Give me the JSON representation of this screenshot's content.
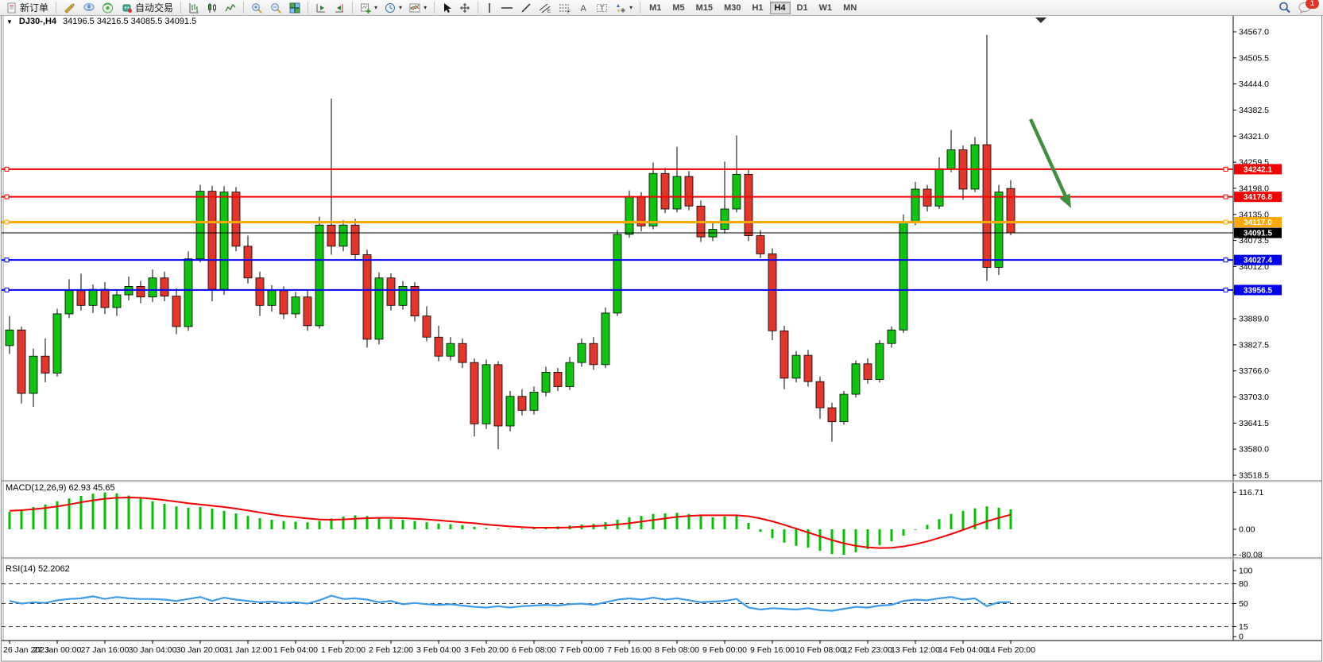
{
  "toolbar": {
    "new_order": "新订单",
    "autotrading": "自动交易",
    "timeframe_buttons": [
      "M1",
      "M5",
      "M15",
      "M30",
      "H1",
      "H4",
      "D1",
      "W1",
      "MN"
    ],
    "active_timeframe": "H4",
    "notification_badge": "1"
  },
  "chart": {
    "symbol_period": "DJ30-,H4",
    "ohlc_text": "34196.5 34216.5 34085.5 34091.5",
    "macd_label": "MACD(12,26,9) 62.93 45.65",
    "rsi_label": "RSI(14) 52.2062"
  },
  "chart_data": {
    "type": "candlestick",
    "symbol": "DJ30-",
    "period": "H4",
    "current_ohlc": {
      "open": 34196.5,
      "high": 34216.5,
      "low": 34085.5,
      "close": 34091.5
    },
    "bull_color": "#0FC40F",
    "bear_color": "#E2362A",
    "price_axis": {
      "max": 34567.0,
      "min": 33518.5,
      "tick_labels": [
        "34567.0",
        "34505.5",
        "34444.0",
        "34382.5",
        "34321.0",
        "34259.5",
        "34198.0",
        "34135.0",
        "34073.5",
        "34012.0",
        "33950.5",
        "33889.0",
        "33827.5",
        "33766.0",
        "33703.0",
        "33641.5",
        "33580.0",
        "33518.5"
      ]
    },
    "time_labels": [
      "26 Jan 2023",
      "27 Jan 00:00",
      "27 Jan 16:00",
      "30 Jan 04:00",
      "30 Jan 20:00",
      "31 Jan 12:00",
      "1 Feb 04:00",
      "1 Feb 20:00",
      "2 Feb 12:00",
      "3 Feb 04:00",
      "3 Feb 20:00",
      "6 Feb 08:00",
      "7 Feb 00:00",
      "7 Feb 16:00",
      "8 Feb 08:00",
      "9 Feb 00:00",
      "9 Feb 16:00",
      "10 Feb 08:00",
      "12 Feb 23:00",
      "13 Feb 12:00",
      "14 Feb 04:00",
      "14 Feb 20:00"
    ],
    "candles": [
      [
        33825,
        33895,
        33805,
        33862
      ],
      [
        33862,
        33870,
        33688,
        33712
      ],
      [
        33712,
        33818,
        33680,
        33800
      ],
      [
        33800,
        33842,
        33738,
        33760
      ],
      [
        33760,
        33912,
        33752,
        33900
      ],
      [
        33900,
        33982,
        33890,
        33955
      ],
      [
        33955,
        33995,
        33908,
        33920
      ],
      [
        33920,
        33970,
        33902,
        33958
      ],
      [
        33958,
        33975,
        33900,
        33915
      ],
      [
        33915,
        33958,
        33895,
        33945
      ],
      [
        33945,
        33988,
        33932,
        33965
      ],
      [
        33965,
        33978,
        33925,
        33940
      ],
      [
        33940,
        34005,
        33928,
        33985
      ],
      [
        33985,
        34000,
        33930,
        33942
      ],
      [
        33942,
        33960,
        33852,
        33870
      ],
      [
        33870,
        34048,
        33860,
        34030
      ],
      [
        34030,
        34205,
        34022,
        34190
      ],
      [
        34190,
        34203,
        33930,
        33958
      ],
      [
        33958,
        34202,
        33945,
        34188
      ],
      [
        34188,
        34200,
        34048,
        34060
      ],
      [
        34060,
        34085,
        33972,
        33985
      ],
      [
        33985,
        34000,
        33895,
        33920
      ],
      [
        33920,
        33968,
        33905,
        33955
      ],
      [
        33955,
        33965,
        33888,
        33900
      ],
      [
        33900,
        33952,
        33890,
        33940
      ],
      [
        33940,
        33955,
        33860,
        33872
      ],
      [
        33872,
        34130,
        33865,
        34110
      ],
      [
        34110,
        34409,
        34040,
        34060
      ],
      [
        34060,
        34122,
        34048,
        34110
      ],
      [
        34110,
        34125,
        34028,
        34040
      ],
      [
        34040,
        34052,
        33820,
        33840
      ],
      [
        33840,
        33998,
        33828,
        33985
      ],
      [
        33985,
        33996,
        33908,
        33920
      ],
      [
        33920,
        33978,
        33910,
        33965
      ],
      [
        33965,
        33975,
        33882,
        33895
      ],
      [
        33895,
        33918,
        33835,
        33845
      ],
      [
        33845,
        33872,
        33788,
        33800
      ],
      [
        33800,
        33845,
        33790,
        33830
      ],
      [
        33830,
        33842,
        33772,
        33785
      ],
      [
        33785,
        33795,
        33610,
        33640
      ],
      [
        33640,
        33792,
        33628,
        33780
      ],
      [
        33780,
        33788,
        33580,
        33635
      ],
      [
        33635,
        33718,
        33622,
        33705
      ],
      [
        33705,
        33722,
        33660,
        33672
      ],
      [
        33672,
        33728,
        33662,
        33715
      ],
      [
        33715,
        33775,
        33705,
        33762
      ],
      [
        33762,
        33772,
        33718,
        33728
      ],
      [
        33728,
        33798,
        33720,
        33785
      ],
      [
        33785,
        33842,
        33775,
        33830
      ],
      [
        33830,
        33845,
        33768,
        33780
      ],
      [
        33780,
        33915,
        33772,
        33902
      ],
      [
        33902,
        34098,
        33895,
        34088
      ],
      [
        34088,
        34192,
        34080,
        34178
      ],
      [
        34178,
        34188,
        34095,
        34108
      ],
      [
        34108,
        34258,
        34100,
        34232
      ],
      [
        34232,
        34245,
        34138,
        34148
      ],
      [
        34148,
        34295,
        34140,
        34225
      ],
      [
        34225,
        34238,
        34145,
        34155
      ],
      [
        34155,
        34168,
        34070,
        34082
      ],
      [
        34082,
        34118,
        34072,
        34100
      ],
      [
        34100,
        34260,
        34090,
        34148
      ],
      [
        34148,
        34322,
        34140,
        34230
      ],
      [
        34230,
        34242,
        34072,
        34085
      ],
      [
        34085,
        34098,
        34032,
        34042
      ],
      [
        34042,
        34055,
        33838,
        33860
      ],
      [
        33860,
        33872,
        33722,
        33748
      ],
      [
        33748,
        33812,
        33738,
        33802
      ],
      [
        33802,
        33815,
        33728,
        33740
      ],
      [
        33740,
        33752,
        33652,
        33678
      ],
      [
        33678,
        33690,
        33598,
        33645
      ],
      [
        33645,
        33718,
        33638,
        33710
      ],
      [
        33710,
        33790,
        33702,
        33782
      ],
      [
        33782,
        33795,
        33735,
        33745
      ],
      [
        33745,
        33838,
        33738,
        33830
      ],
      [
        33830,
        33870,
        33820,
        33862
      ],
      [
        33862,
        34135,
        33855,
        34118
      ],
      [
        34118,
        34212,
        34110,
        34195
      ],
      [
        34195,
        34205,
        34142,
        34155
      ],
      [
        34155,
        34270,
        34148,
        34242
      ],
      [
        34242,
        34335,
        34235,
        34288
      ],
      [
        34288,
        34298,
        34170,
        34195
      ],
      [
        34195,
        34318,
        34188,
        34300
      ],
      [
        34300,
        34560,
        33978,
        34010
      ],
      [
        34010,
        34205,
        33992,
        34188
      ],
      [
        34196.5,
        34216.5,
        34085.5,
        34091.5
      ]
    ],
    "horizontal_lines": [
      {
        "price": 34242.1,
        "color": "#F40000",
        "label": "34242.1",
        "width": 2
      },
      {
        "price": 34176.8,
        "color": "#F40000",
        "label": "34176.8",
        "width": 2
      },
      {
        "price": 34117.0,
        "color": "#FFA800",
        "label": "34117.0",
        "width": 3
      },
      {
        "price": 34027.4,
        "color": "#0000F0",
        "label": "34027.4",
        "width": 2
      },
      {
        "price": 33956.5,
        "color": "#0000F0",
        "label": "33956.5",
        "width": 2
      }
    ],
    "bid_line": {
      "price": 34091.5,
      "color": "#000000",
      "label": "34091.5"
    },
    "annotation_arrow": {
      "color": "#3F8F3F"
    },
    "macd": {
      "name": "MACD(12,26,9)",
      "value_main": 62.93,
      "value_signal": 45.65,
      "axis_labels": [
        "116.71",
        "0.00",
        "-80.08"
      ],
      "histogram_color": "#00C000",
      "signal_color": "#F40000",
      "histogram": [
        55,
        62,
        70,
        78,
        88,
        97,
        105,
        112,
        116,
        113,
        106,
        97,
        88,
        80,
        72,
        68,
        70,
        65,
        58,
        50,
        42,
        35,
        30,
        26,
        24,
        22,
        26,
        34,
        40,
        44,
        42,
        36,
        32,
        30,
        26,
        22,
        18,
        16,
        13,
        8,
        4,
        2,
        1,
        2,
        4,
        6,
        9,
        12,
        15,
        17,
        22,
        30,
        38,
        42,
        48,
        50,
        52,
        48,
        42,
        38,
        40,
        45,
        20,
        -8,
        -28,
        -42,
        -52,
        -58,
        -68,
        -78,
        -80,
        -72,
        -62,
        -50,
        -38,
        -20,
        -2,
        14,
        32,
        48,
        58,
        66,
        72,
        68,
        63
      ],
      "signal": [
        58,
        60,
        63,
        67,
        72,
        78,
        85,
        91,
        96,
        99,
        100,
        99,
        96,
        92,
        87,
        82,
        78,
        74,
        70,
        65,
        59,
        53,
        47,
        42,
        38,
        34,
        31,
        30,
        31,
        33,
        35,
        36,
        36,
        35,
        33,
        31,
        28,
        25,
        22,
        19,
        15,
        12,
        9,
        7,
        5,
        5,
        5,
        6,
        8,
        10,
        12,
        15,
        19,
        24,
        29,
        34,
        39,
        42,
        44,
        44,
        44,
        44,
        41,
        34,
        25,
        14,
        2,
        -10,
        -22,
        -34,
        -44,
        -52,
        -57,
        -59,
        -58,
        -54,
        -47,
        -38,
        -27,
        -15,
        -2,
        12,
        25,
        36,
        46
      ]
    },
    "rsi": {
      "name": "RSI(14)",
      "value": 52.2062,
      "levels": [
        80,
        50,
        15
      ],
      "axis_labels": [
        "100",
        "80",
        "50",
        "15",
        "0"
      ],
      "line_color": "#3E9BE9",
      "values": [
        54,
        50,
        52,
        51,
        55,
        57,
        58,
        61,
        57,
        60,
        58,
        57,
        57,
        56,
        54,
        57,
        60,
        54,
        59,
        56,
        54,
        52,
        53,
        51,
        52,
        50,
        55,
        62,
        57,
        58,
        56,
        52,
        54,
        49,
        51,
        49,
        48,
        49,
        47,
        45,
        44,
        46,
        44,
        46,
        47,
        48,
        47,
        49,
        50,
        48,
        52,
        56,
        58,
        56,
        59,
        56,
        58,
        55,
        52,
        53,
        54,
        57,
        44,
        41,
        43,
        42,
        41,
        43,
        40,
        39,
        42,
        45,
        44,
        47,
        48,
        54,
        56,
        55,
        58,
        60,
        56,
        58,
        46,
        52,
        52.2
      ]
    }
  }
}
